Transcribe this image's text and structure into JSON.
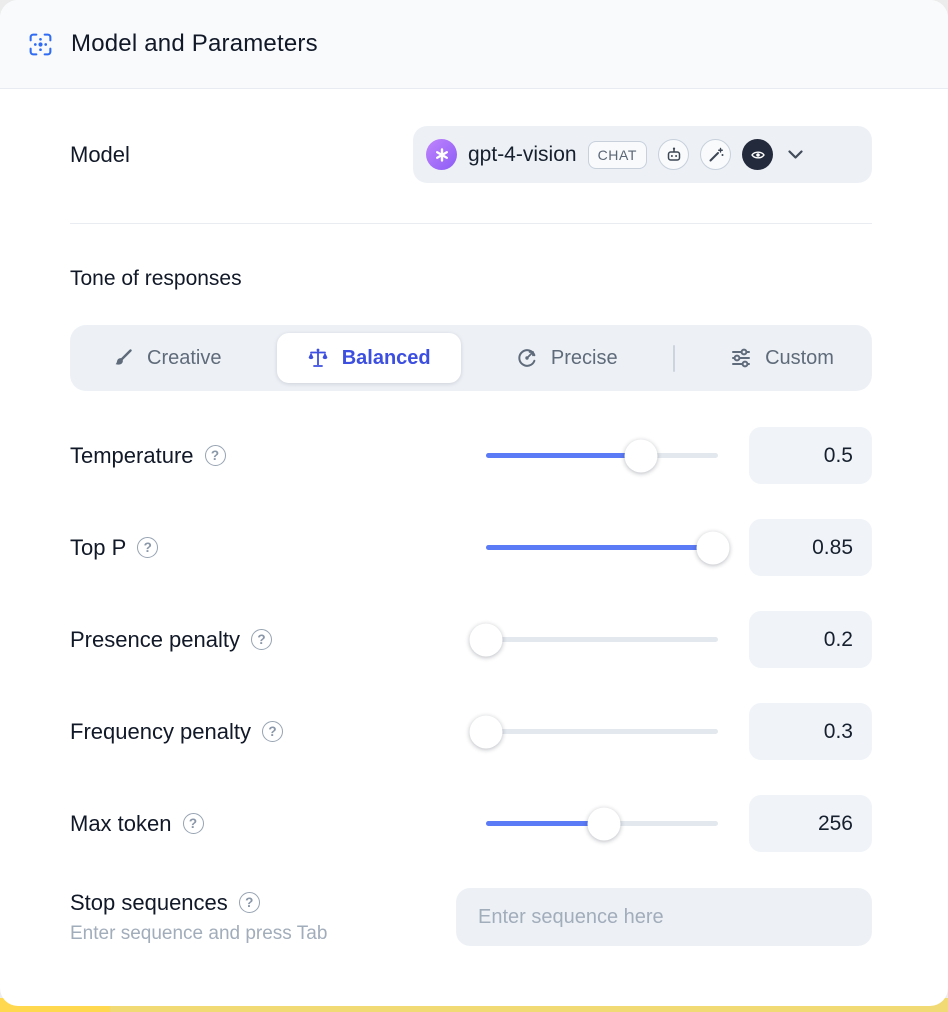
{
  "header": {
    "title": "Model and Parameters"
  },
  "model": {
    "label": "Model",
    "value": "gpt-4-vision",
    "badge": "CHAT"
  },
  "tone": {
    "label": "Tone of responses",
    "options": [
      {
        "label": "Creative",
        "selected": false
      },
      {
        "label": "Balanced",
        "selected": true
      },
      {
        "label": "Precise",
        "selected": false
      },
      {
        "label": "Custom",
        "selected": false
      }
    ]
  },
  "params": [
    {
      "label": "Temperature",
      "value": "0.5",
      "pct": 67
    },
    {
      "label": "Top P",
      "value": "0.85",
      "pct": 98
    },
    {
      "label": "Presence penalty",
      "value": "0.2",
      "pct": 0
    },
    {
      "label": "Frequency penalty",
      "value": "0.3",
      "pct": 0
    },
    {
      "label": "Max token",
      "value": "256",
      "pct": 51
    }
  ],
  "stop": {
    "label": "Stop sequences",
    "hint": "Enter sequence and press Tab",
    "placeholder": "Enter sequence here"
  },
  "icons": {
    "question": "?"
  },
  "colors": {
    "accent": "#3c4fe0",
    "slider_fill": "#5b7af5",
    "header_icon": "#2f6bf3",
    "panel_bg": "#edf1f6"
  }
}
